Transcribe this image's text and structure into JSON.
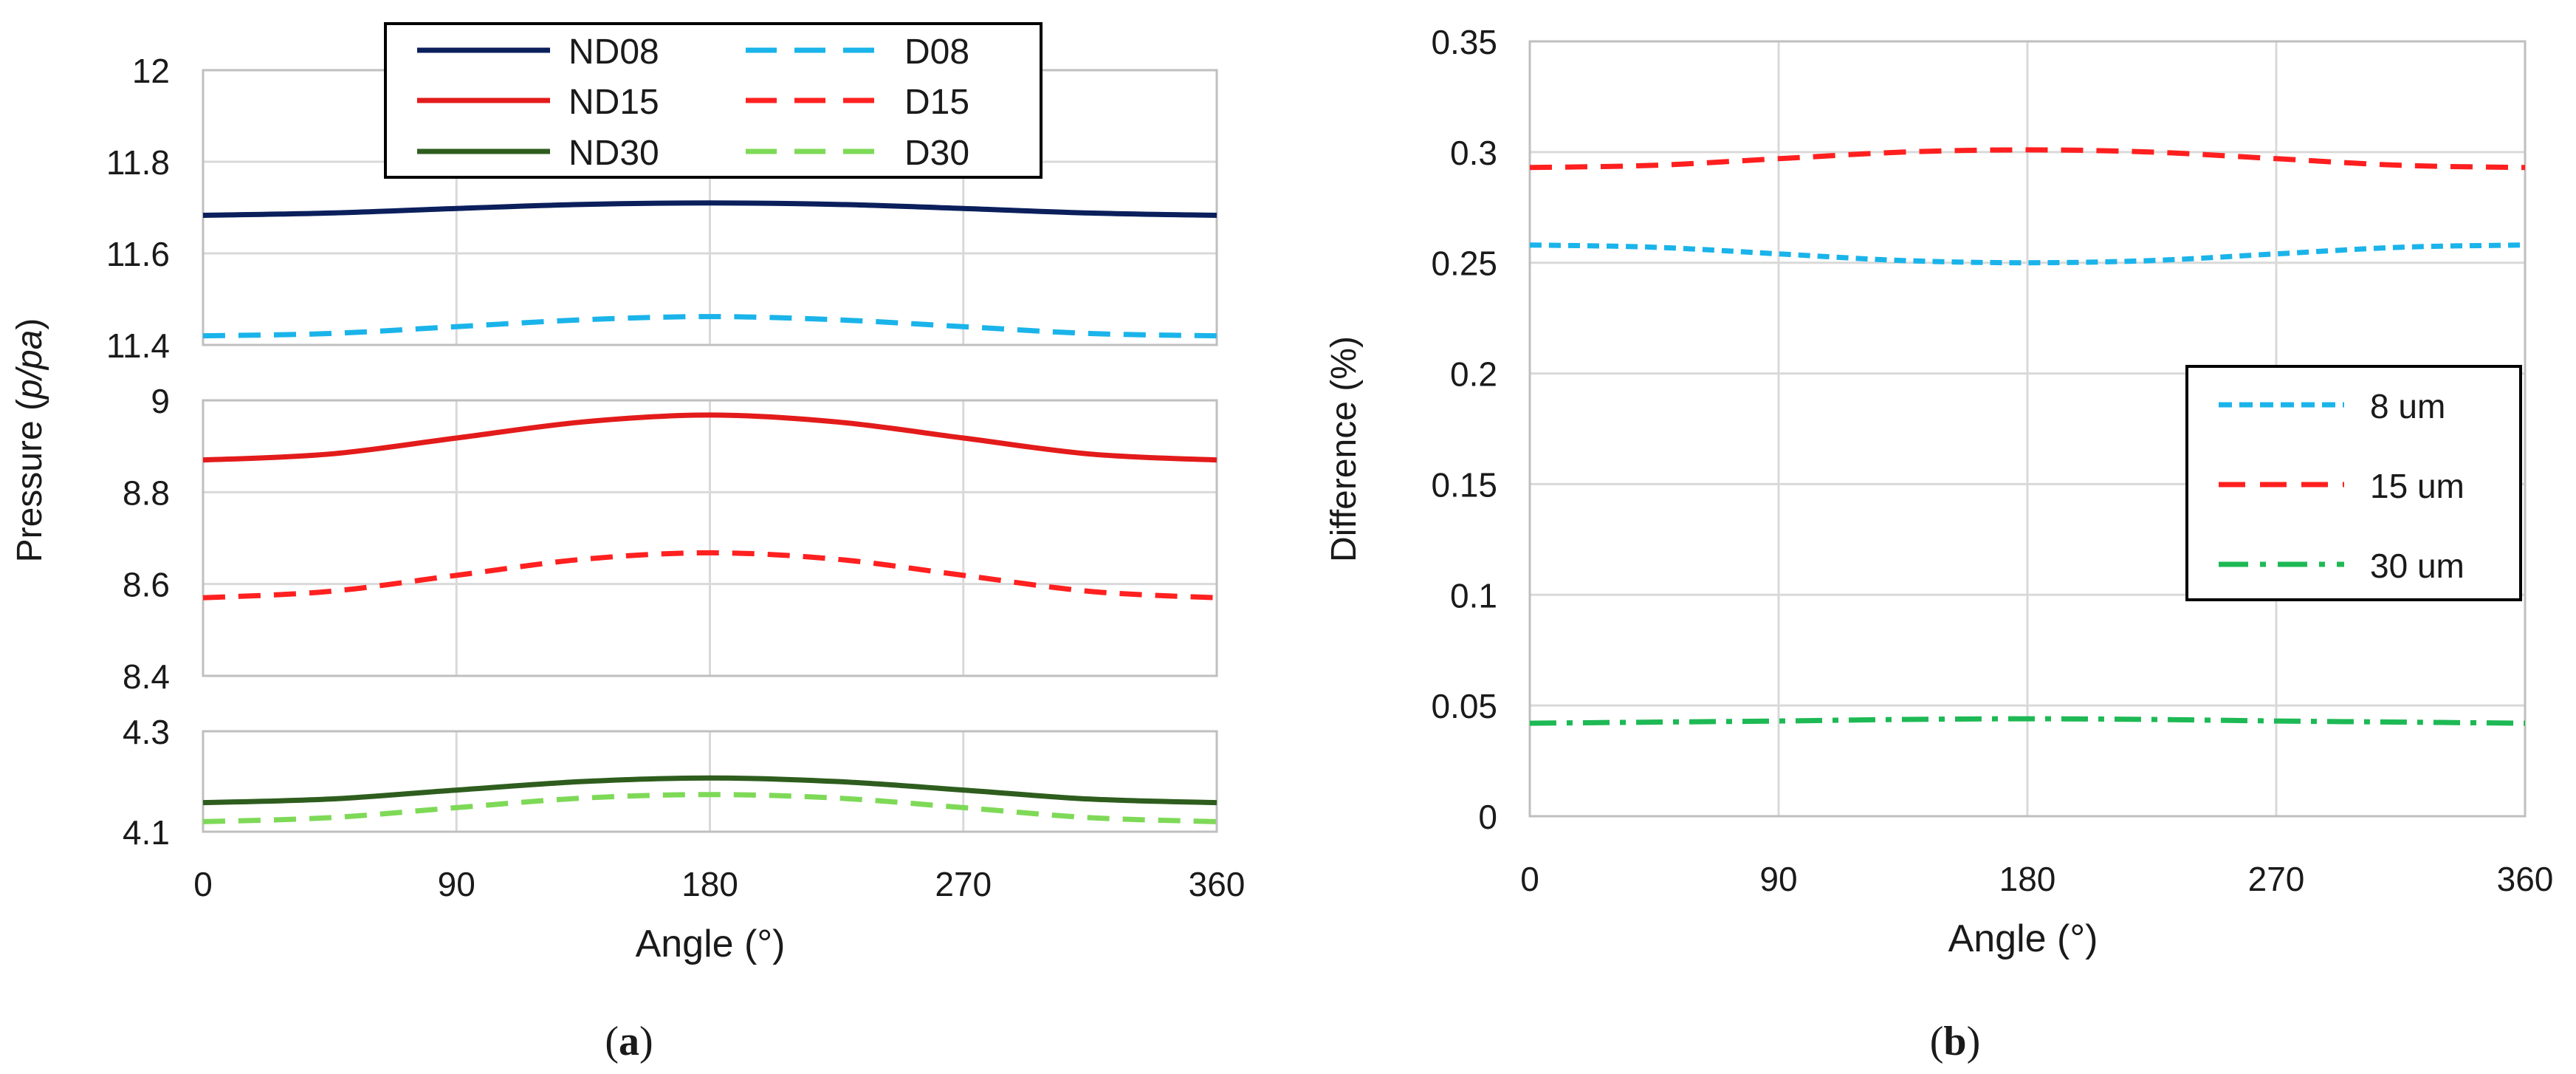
{
  "colors": {
    "grid": "#d9d9d9",
    "axis": "#bfbfbf",
    "text": "#1a1a1a",
    "nd08": "#0b1f5c",
    "d08": "#1ab4ea",
    "nd15": "#e31b1b",
    "d15": "#ff2020",
    "nd30": "#2e5d1e",
    "d30": "#7ed957",
    "b8": "#1ab4ea",
    "b15": "#ff1f1f",
    "b30": "#1db954"
  },
  "chart_data": [
    {
      "id": "a",
      "type": "line",
      "caption": "a",
      "xlabel": "Angle (°)",
      "ylabel_prefix": "Pressure (",
      "ylabel_italic": "p/pa",
      "ylabel_suffix": ")",
      "xlim": [
        0,
        360
      ],
      "xticks": [
        "0",
        "90",
        "180",
        "270",
        "360"
      ],
      "panels": [
        {
          "name": "top",
          "ylim": [
            11.4,
            12.0
          ],
          "yticks": [
            "11.4",
            "11.6",
            "11.8",
            "12"
          ],
          "series": [
            {
              "key": "ND08",
              "x": [
                0,
                45,
                90,
                135,
                180,
                225,
                270,
                315,
                360
              ],
              "y": [
                11.683,
                11.688,
                11.698,
                11.707,
                11.71,
                11.707,
                11.698,
                11.688,
                11.683
              ]
            },
            {
              "key": "D08",
              "x": [
                0,
                45,
                90,
                135,
                180,
                225,
                270,
                315,
                360
              ],
              "y": [
                11.42,
                11.425,
                11.44,
                11.455,
                11.462,
                11.455,
                11.44,
                11.425,
                11.42
              ]
            }
          ]
        },
        {
          "name": "middle",
          "ylim": [
            8.4,
            9.0
          ],
          "yticks": [
            "8.4",
            "8.6",
            "8.8",
            "9"
          ],
          "series": [
            {
              "key": "ND15",
              "x": [
                0,
                45,
                90,
                135,
                180,
                225,
                270,
                315,
                360
              ],
              "y": [
                8.87,
                8.883,
                8.918,
                8.953,
                8.968,
                8.953,
                8.918,
                8.883,
                8.87
              ]
            },
            {
              "key": "D15",
              "x": [
                0,
                45,
                90,
                135,
                180,
                225,
                270,
                315,
                360
              ],
              "y": [
                8.57,
                8.584,
                8.619,
                8.654,
                8.668,
                8.654,
                8.619,
                8.584,
                8.57
              ]
            }
          ]
        },
        {
          "name": "bottom",
          "ylim": [
            4.1,
            4.3
          ],
          "yticks": [
            "4.1",
            "4.3"
          ],
          "series": [
            {
              "key": "ND30",
              "x": [
                0,
                45,
                90,
                135,
                180,
                225,
                270,
                315,
                360
              ],
              "y": [
                4.158,
                4.165,
                4.183,
                4.2,
                4.207,
                4.2,
                4.183,
                4.165,
                4.158
              ]
            },
            {
              "key": "D30",
              "x": [
                0,
                45,
                90,
                135,
                180,
                225,
                270,
                315,
                360
              ],
              "y": [
                4.12,
                4.128,
                4.148,
                4.167,
                4.174,
                4.167,
                4.148,
                4.128,
                4.12
              ]
            }
          ]
        }
      ],
      "series_styles": {
        "ND08": {
          "color": "nd08",
          "dash": false
        },
        "D08": {
          "color": "d08",
          "dash": true
        },
        "ND15": {
          "color": "nd15",
          "dash": false
        },
        "D15": {
          "color": "d15",
          "dash": true
        },
        "ND30": {
          "color": "nd30",
          "dash": false
        },
        "D30": {
          "color": "d30",
          "dash": true
        }
      },
      "legend": {
        "placement": "top-center",
        "columns": 2,
        "items": [
          {
            "key": "ND08",
            "label": "ND08"
          },
          {
            "key": "D08",
            "label": "D08"
          },
          {
            "key": "ND15",
            "label": "ND15"
          },
          {
            "key": "D15",
            "label": "D15"
          },
          {
            "key": "ND30",
            "label": "ND30"
          },
          {
            "key": "D30",
            "label": "D30"
          }
        ]
      }
    },
    {
      "id": "b",
      "type": "line",
      "caption": "b",
      "xlabel": "Angle (°)",
      "ylabel": "Difference (%)",
      "xlim": [
        0,
        360
      ],
      "ylim": [
        0,
        0.35
      ],
      "xticks": [
        "0",
        "90",
        "180",
        "270",
        "360"
      ],
      "yticks": [
        "0",
        "0.05",
        "0.1",
        "0.15",
        "0.2",
        "0.25",
        "0.3",
        "0.35"
      ],
      "series": [
        {
          "key": "8um",
          "name": "8 um",
          "style": "dotted",
          "color": "b8",
          "x": [
            0,
            45,
            90,
            135,
            180,
            225,
            270,
            315,
            360
          ],
          "y": [
            0.258,
            0.257,
            0.254,
            0.251,
            0.25,
            0.251,
            0.254,
            0.257,
            0.258
          ]
        },
        {
          "key": "15um",
          "name": "15 um",
          "style": "dashed",
          "color": "b15",
          "x": [
            0,
            45,
            90,
            135,
            180,
            225,
            270,
            315,
            360
          ],
          "y": [
            0.293,
            0.294,
            0.297,
            0.3,
            0.301,
            0.3,
            0.297,
            0.294,
            0.293
          ]
        },
        {
          "key": "30um",
          "name": "30 um",
          "style": "dashdot",
          "color": "b30",
          "x": [
            0,
            45,
            90,
            135,
            180,
            225,
            270,
            315,
            360
          ],
          "y": [
            0.042,
            0.0425,
            0.043,
            0.0437,
            0.044,
            0.0437,
            0.043,
            0.0425,
            0.042
          ]
        }
      ],
      "legend": {
        "placement": "right"
      }
    }
  ]
}
